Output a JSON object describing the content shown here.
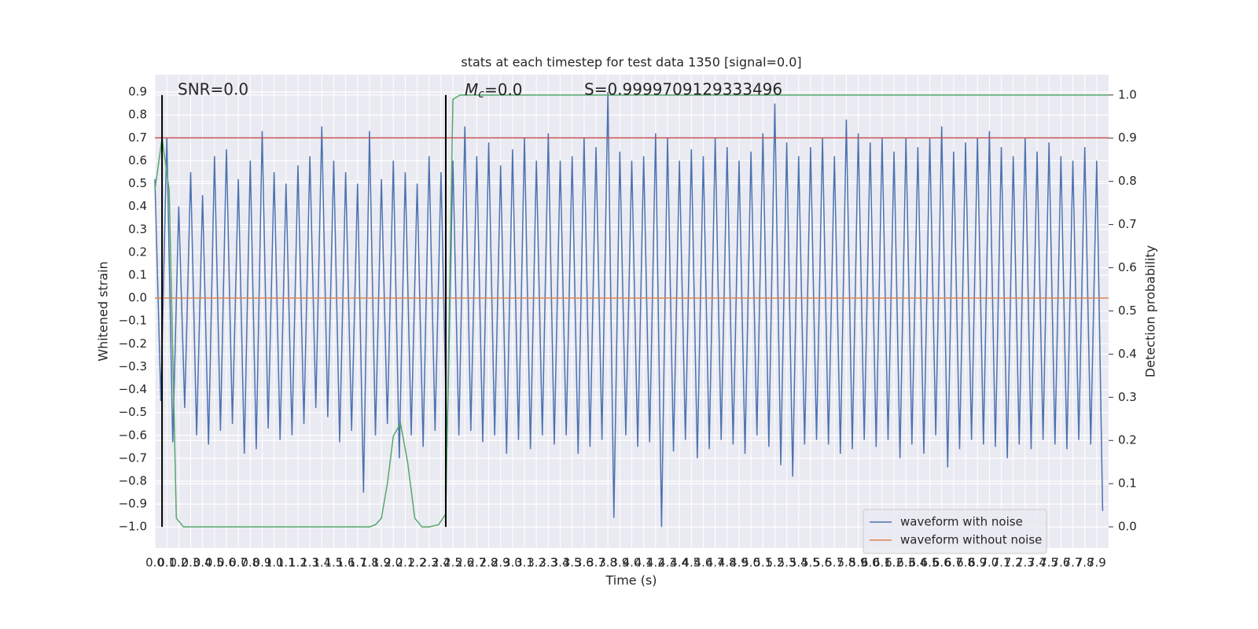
{
  "chart_data": {
    "type": "line",
    "title": "stats at each timestep for test data 1350 [signal=0.0]",
    "xlabel": "Time (s)",
    "ylabel": "Whitened strain",
    "y2label": "Detection probability",
    "annotations": [
      {
        "text": "SNR=0.0"
      },
      {
        "symbol": "M",
        "subscript": "c",
        "text": "=0.0"
      },
      {
        "text": "S=0.9999709129333496"
      }
    ],
    "xlim": [
      0,
      8.0
    ],
    "ylim": [
      -1.092,
      0.976
    ],
    "y2lim": [
      -0.049,
      1.047
    ],
    "grid": true,
    "legend": "lower right",
    "xticks": [
      {
        "value": 0,
        "label": "0.0"
      },
      0.1,
      0.2,
      0.3,
      0.4,
      0.5,
      0.6,
      0.7,
      0.8,
      0.9,
      {
        "value": 1,
        "label": "1.0"
      },
      1.1,
      1.2,
      1.3,
      1.4,
      1.5,
      1.6,
      1.7,
      1.8,
      1.9,
      {
        "value": 2,
        "label": "2.0"
      },
      2.1,
      2.2,
      2.3,
      2.4,
      2.5,
      2.6,
      2.7,
      2.8,
      2.9,
      {
        "value": 3,
        "label": "3.0"
      },
      3.1,
      3.2,
      3.3,
      3.4,
      3.5,
      3.6,
      3.7,
      3.8,
      3.9,
      {
        "value": 4,
        "label": "4.0"
      },
      4.1,
      4.2,
      4.3,
      4.4,
      4.5,
      4.6,
      4.7,
      4.8,
      4.9,
      {
        "value": 5,
        "label": "5.0"
      },
      5.1,
      5.2,
      5.3,
      5.4,
      5.5,
      5.6,
      5.7,
      5.8,
      5.9,
      {
        "value": 6,
        "label": "6.0"
      },
      6.1,
      6.2,
      6.3,
      6.4,
      6.5,
      6.6,
      6.7,
      6.8,
      6.9,
      {
        "value": 7,
        "label": "7.0"
      },
      7.1,
      7.2,
      7.3,
      7.4,
      7.5,
      7.6,
      7.7,
      7.8,
      7.9
    ],
    "yticks": [
      {
        "value": -1,
        "label": "−1.0"
      },
      {
        "value": -0.9,
        "label": "−0.9"
      },
      {
        "value": -0.8,
        "label": "−0.8"
      },
      {
        "value": -0.7,
        "label": "−0.7"
      },
      {
        "value": -0.6,
        "label": "−0.6"
      },
      {
        "value": -0.5,
        "label": "−0.5"
      },
      {
        "value": -0.4,
        "label": "−0.4"
      },
      {
        "value": -0.3,
        "label": "−0.3"
      },
      {
        "value": -0.2,
        "label": "−0.2"
      },
      {
        "value": -0.1,
        "label": "−0.1"
      },
      {
        "value": 0,
        "label": "0.0"
      },
      0.1,
      0.2,
      0.3,
      0.4,
      0.5,
      0.6,
      0.7,
      0.8,
      0.9
    ],
    "y2ticks": [
      {
        "value": 0,
        "label": "0.0"
      },
      0.1,
      0.2,
      0.3,
      0.4,
      0.5,
      0.6,
      0.7,
      0.8,
      0.9,
      {
        "value": 1,
        "label": "1.0"
      }
    ],
    "hlines": [
      {
        "value": 0.7,
        "color": "#c44e52"
      }
    ],
    "vlines": {
      "x": [
        0.06,
        2.44
      ],
      "color": "#000000"
    },
    "series": [
      {
        "name": "waveform with noise",
        "color": "#4c72b0",
        "x": [
          0,
          0.05,
          0.1,
          0.15,
          0.2,
          0.25,
          0.3,
          0.35,
          0.4,
          0.45,
          0.5,
          0.55,
          0.6,
          0.65,
          0.7,
          0.75,
          0.8,
          0.85,
          0.9,
          0.95,
          1.0,
          1.05,
          1.1,
          1.15,
          1.2,
          1.25,
          1.3,
          1.35,
          1.4,
          1.45,
          1.5,
          1.55,
          1.6,
          1.65,
          1.7,
          1.75,
          1.8,
          1.85,
          1.9,
          1.95,
          2.0,
          2.05,
          2.1,
          2.15,
          2.2,
          2.25,
          2.3,
          2.35,
          2.4,
          2.45,
          2.5,
          2.55,
          2.6,
          2.65,
          2.7,
          2.75,
          2.8,
          2.85,
          2.9,
          2.95,
          3.0,
          3.05,
          3.1,
          3.15,
          3.2,
          3.25,
          3.3,
          3.35,
          3.4,
          3.45,
          3.5,
          3.55,
          3.6,
          3.65,
          3.7,
          3.75,
          3.8,
          3.85,
          3.9,
          3.95,
          4.0,
          4.05,
          4.1,
          4.15,
          4.2,
          4.25,
          4.3,
          4.35,
          4.4,
          4.45,
          4.5,
          4.55,
          4.6,
          4.65,
          4.7,
          4.75,
          4.8,
          4.85,
          4.9,
          4.95,
          5.0,
          5.05,
          5.1,
          5.15,
          5.2,
          5.25,
          5.3,
          5.35,
          5.4,
          5.45,
          5.5,
          5.55,
          5.6,
          5.65,
          5.7,
          5.75,
          5.8,
          5.85,
          5.9,
          5.95,
          6.0,
          6.05,
          6.1,
          6.15,
          6.2,
          6.25,
          6.3,
          6.35,
          6.4,
          6.45,
          6.5,
          6.55,
          6.6,
          6.65,
          6.7,
          6.75,
          6.8,
          6.85,
          6.9,
          6.95,
          7.0,
          7.05,
          7.1,
          7.15,
          7.2,
          7.25,
          7.3,
          7.35,
          7.4,
          7.45,
          7.5,
          7.55,
          7.6,
          7.65,
          7.7,
          7.75,
          7.8,
          7.85,
          7.9,
          7.95
        ],
        "values": [
          0.52,
          -0.45,
          0.7,
          -0.63,
          0.4,
          -0.48,
          0.55,
          -0.6,
          0.45,
          -0.64,
          0.62,
          -0.58,
          0.65,
          -0.55,
          0.52,
          -0.68,
          0.6,
          -0.66,
          0.73,
          -0.57,
          0.55,
          -0.62,
          0.5,
          -0.6,
          0.58,
          -0.55,
          0.62,
          -0.48,
          0.75,
          -0.52,
          0.6,
          -0.63,
          0.55,
          -0.58,
          0.5,
          -0.85,
          0.73,
          -0.6,
          0.52,
          -0.55,
          0.6,
          -0.7,
          0.55,
          -0.6,
          0.5,
          -0.65,
          0.62,
          -0.58,
          0.55,
          -0.65,
          0.6,
          -0.6,
          0.75,
          -0.58,
          0.62,
          -0.63,
          0.68,
          -0.6,
          0.58,
          -0.68,
          0.65,
          -0.62,
          0.7,
          -0.66,
          0.6,
          -0.6,
          0.72,
          -0.64,
          0.6,
          -0.6,
          0.62,
          -0.68,
          0.7,
          -0.65,
          0.66,
          -0.62,
          0.9,
          -0.96,
          0.64,
          -0.6,
          0.6,
          -0.65,
          0.62,
          -0.63,
          0.72,
          -1.0,
          0.7,
          -0.67,
          0.6,
          -0.62,
          0.65,
          -0.7,
          0.62,
          -0.66,
          0.7,
          -0.62,
          0.66,
          -0.64,
          0.6,
          -0.68,
          0.64,
          -0.6,
          0.72,
          -0.65,
          0.85,
          -0.73,
          0.68,
          -0.78,
          0.62,
          -0.64,
          0.66,
          -0.62,
          0.7,
          -0.64,
          0.62,
          -0.68,
          0.78,
          -0.66,
          0.72,
          -0.62,
          0.68,
          -0.65,
          0.7,
          -0.62,
          0.64,
          -0.7,
          0.7,
          -0.64,
          0.66,
          -0.68,
          0.7,
          -0.6,
          0.75,
          -0.74,
          0.64,
          -0.66,
          0.68,
          -0.62,
          0.7,
          -0.64,
          0.73,
          -0.65,
          0.66,
          -0.7,
          0.62,
          -0.64,
          0.7,
          -0.66,
          0.64,
          -0.62,
          0.68,
          -0.64,
          0.62,
          -0.66,
          0.6,
          -0.62,
          0.66,
          -0.64,
          0.6,
          -0.93
        ]
      },
      {
        "name": "waveform without noise",
        "color": "#dd8452",
        "x": [
          0,
          8.0
        ],
        "values": [
          0,
          0
        ]
      },
      {
        "color": "#55a868",
        "axis": "y2",
        "x": [
          0,
          0.06,
          0.12,
          0.18,
          0.24,
          1.8,
          1.85,
          1.9,
          1.95,
          2.0,
          2.06,
          2.12,
          2.18,
          2.24,
          2.3,
          2.38,
          2.44,
          2.5,
          2.56,
          8.0
        ],
        "values": [
          0.78,
          0.9,
          0.78,
          0.02,
          0.0,
          0.0,
          0.005,
          0.02,
          0.1,
          0.21,
          0.24,
          0.15,
          0.02,
          0.0,
          0.0,
          0.005,
          0.03,
          0.99,
          1.0,
          1.0
        ]
      }
    ]
  }
}
